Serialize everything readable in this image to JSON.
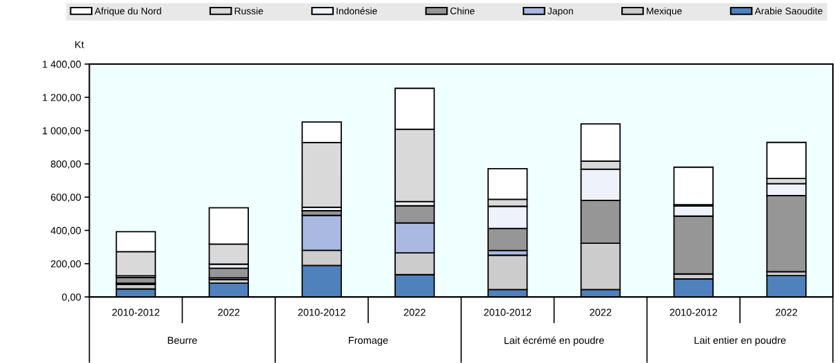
{
  "chart_data": {
    "type": "bar",
    "stacked": true,
    "ylabel": "Kt",
    "categories": [
      "2010-2012",
      "2022",
      "2010-2012",
      "2022",
      "2010-2012",
      "2022",
      "2010-2012",
      "2022"
    ],
    "annotations": [
      "Beurre",
      "Fromage",
      "Lait écrémé en poudre",
      "Lait entier en poudre"
    ],
    "series": [
      {
        "name": "Arabie Saoudite",
        "color": "#4f81bd",
        "values": [
          48,
          83,
          189,
          134,
          44,
          44,
          108,
          128
        ]
      },
      {
        "name": "Mexique",
        "color": "#cccccc",
        "values": [
          28,
          21,
          91,
          131,
          207,
          279,
          30,
          24
        ]
      },
      {
        "name": "Japon",
        "color": "#a9b9e1",
        "values": [
          7,
          11,
          210,
          180,
          28,
          null,
          null,
          null
        ]
      },
      {
        "name": "Chine",
        "color": "#969696",
        "values": [
          34,
          58,
          28,
          103,
          133,
          258,
          348,
          457
        ]
      },
      {
        "name": "Indonésie",
        "color": "#eef2fa",
        "values": [
          10,
          24,
          21,
          25,
          133,
          187,
          61,
          72
        ]
      },
      {
        "name": "Russie",
        "color": "#d9d9d9",
        "values": [
          145,
          121,
          389,
          435,
          42,
          49,
          8,
          31
        ]
      },
      {
        "name": "Afrique du Nord",
        "color": "#ffffff",
        "values": [
          120,
          218,
          124,
          246,
          184,
          223,
          225,
          217
        ]
      }
    ],
    "ylim": [
      0,
      1400
    ],
    "yticks": [
      {
        "value": 0,
        "label": "0,00"
      },
      {
        "value": 200,
        "label": "200,00"
      },
      {
        "value": 400,
        "label": "400,00"
      },
      {
        "value": 600,
        "label": "600,00"
      },
      {
        "value": 800,
        "label": "800,00"
      },
      {
        "value": 1000,
        "label": "1 000,00"
      },
      {
        "value": 1200,
        "label": "1 200,00"
      },
      {
        "value": 1400,
        "label": "1 400,00"
      }
    ],
    "grid": false,
    "legend": "top"
  }
}
